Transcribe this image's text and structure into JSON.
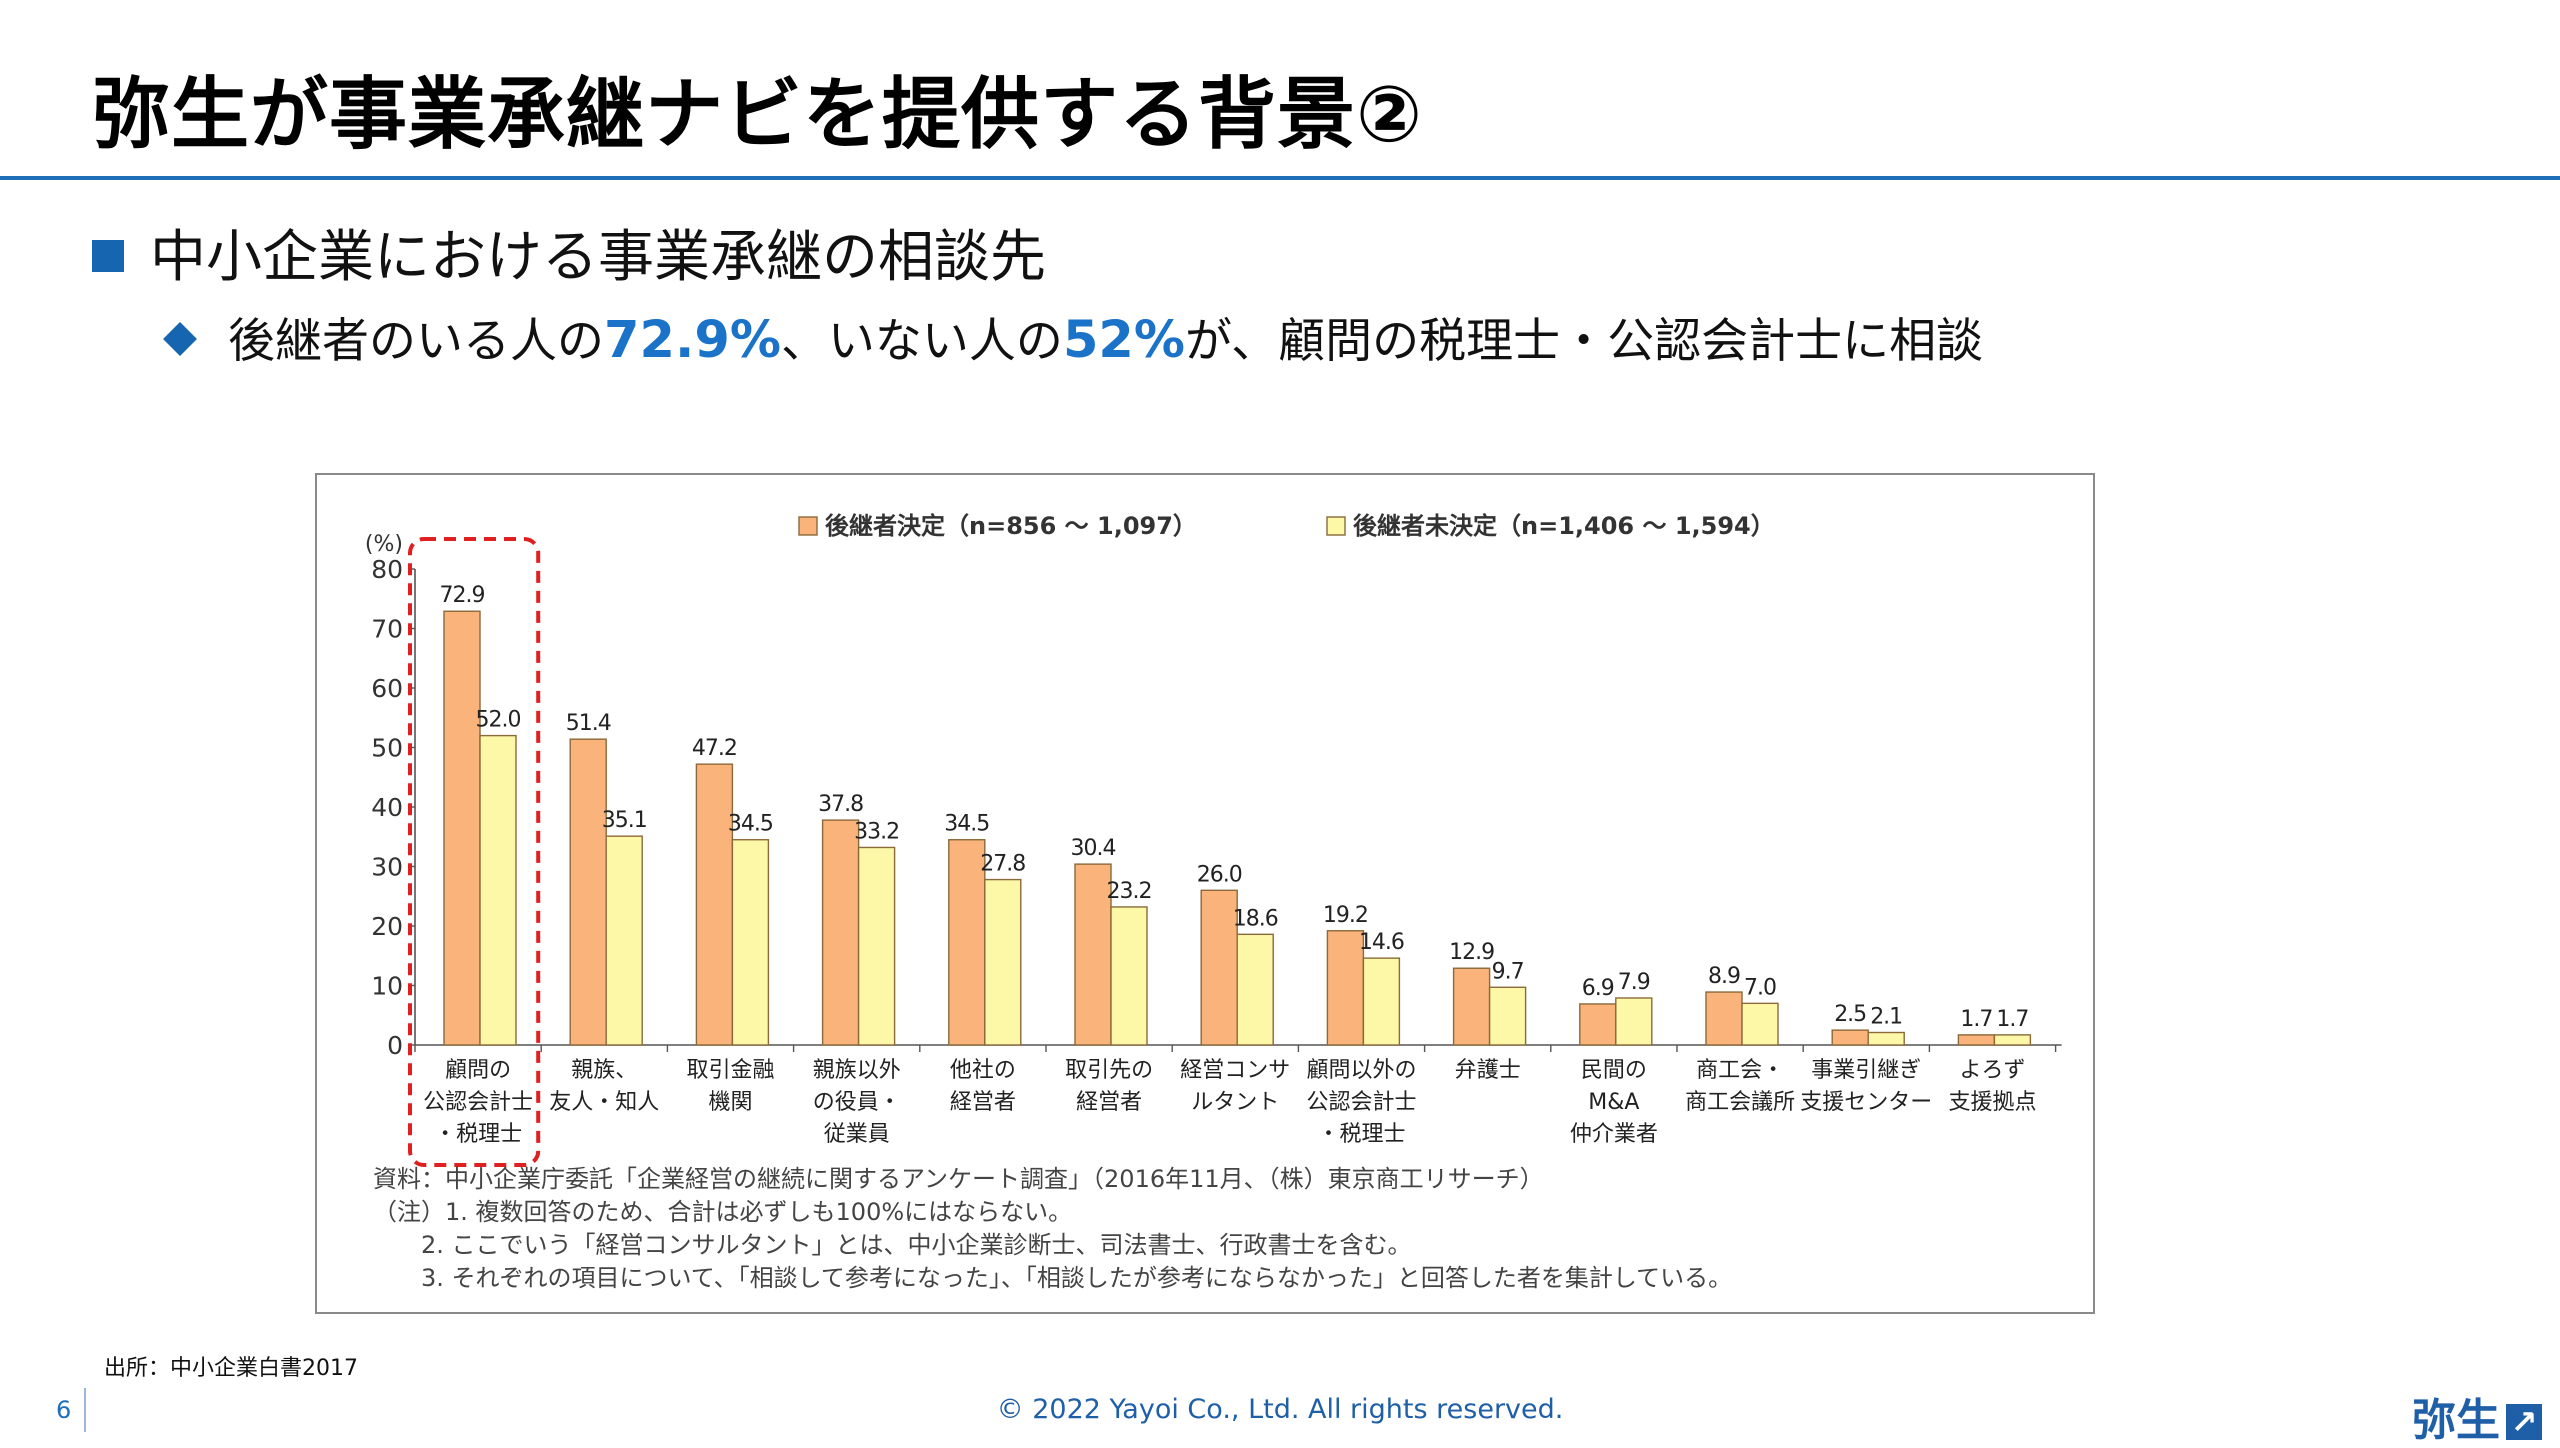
{
  "slide": {
    "title": "弥生が事業承継ナビを提供する背景②",
    "bullet1": "中小企業における事業承継の相談先",
    "bullet2": {
      "p1": "後継者のいる人の",
      "h1": "72.9%",
      "p2": "、いない人の",
      "h2": "52%",
      "p3": "が、顧問の税理士・公認会計士に相談"
    },
    "source": "出所：中小企業白書2017",
    "page_number": "6",
    "copyright": "© 2022 Yayoi Co., Ltd.  All rights reserved.",
    "logo_text": "弥生",
    "logo_mark": "↗"
  },
  "colors": {
    "series1": "#fab37a",
    "series2": "#fdf7a8",
    "bar_stroke": "#8a6a3a",
    "highlight_box": "#e02020",
    "accent": "#1565b0"
  },
  "chart_data": {
    "type": "bar",
    "y_unit": "(%)",
    "ylim": [
      0,
      80
    ],
    "yticks": [
      0,
      10,
      20,
      30,
      40,
      50,
      60,
      70,
      80
    ],
    "grid": false,
    "legend_position": "top",
    "categories": [
      [
        "顧問の",
        "公認会計士",
        "・税理士"
      ],
      [
        "親族、",
        "友人・知人"
      ],
      [
        "取引金融",
        "機関"
      ],
      [
        "親族以外",
        "の役員・",
        "従業員"
      ],
      [
        "他社の",
        "経営者"
      ],
      [
        "取引先の",
        "経営者"
      ],
      [
        "経営コンサ",
        "ルタント"
      ],
      [
        "顧問以外の",
        "公認会計士",
        "・税理士"
      ],
      [
        "弁護士"
      ],
      [
        "民間の",
        "M&A",
        "仲介業者"
      ],
      [
        "商工会・",
        "商工会議所"
      ],
      [
        "事業引継ぎ",
        "支援センター"
      ],
      [
        "よろず",
        "支援拠点"
      ]
    ],
    "series": [
      {
        "name": "後継者決定（n=856 ～ 1,097）",
        "values": [
          72.9,
          51.4,
          47.2,
          37.8,
          34.5,
          30.4,
          26.0,
          19.2,
          12.9,
          6.9,
          8.9,
          2.5,
          1.7
        ],
        "labels": [
          "72.9",
          "51.4",
          "47.2",
          "37.8",
          "34.5",
          "30.4",
          "26.0",
          "19.2",
          "12.9",
          "6.9",
          "8.9",
          "2.5",
          "1.7"
        ]
      },
      {
        "name": "後継者未決定（n=1,406 ～ 1,594）",
        "values": [
          52.0,
          35.1,
          34.5,
          33.2,
          27.8,
          23.2,
          18.6,
          14.6,
          9.7,
          7.9,
          7.0,
          2.1,
          1.7
        ],
        "labels": [
          "52.0",
          "35.1",
          "34.5",
          "33.2",
          "27.8",
          "23.2",
          "18.6",
          "14.6",
          "9.7",
          "7.9",
          "7.0",
          "2.1",
          "1.7"
        ]
      }
    ],
    "highlighted_category": 0,
    "notes": [
      "資料：中小企業庁委託「企業経営の継続に関するアンケート調査」（2016年11月、（株）東京商工リサーチ）",
      "（注）1. 複数回答のため、合計は必ずしも100%にはならない。",
      "2. ここでいう「経営コンサルタント」とは、中小企業診断士、司法書士、行政書士を含む。",
      "3. それぞれの項目について、「相談して参考になった」、「相談したが参考にならなかった」と回答した者を集計している。"
    ]
  }
}
